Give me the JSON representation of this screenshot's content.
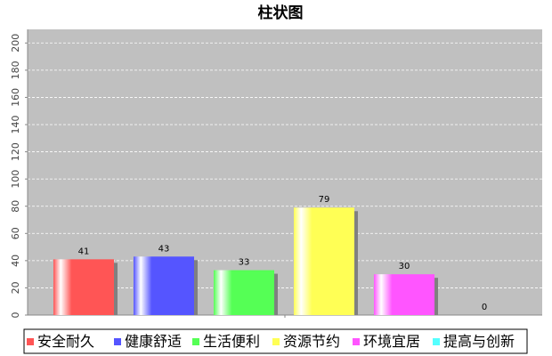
{
  "chart_data": {
    "type": "bar",
    "title": "柱状图",
    "categories": [
      null
    ],
    "series": [
      {
        "name": "安全耐久",
        "color": "#ff5555",
        "values": [
          41
        ]
      },
      {
        "name": "健康舒适",
        "color": "#5555ff",
        "values": [
          43
        ]
      },
      {
        "name": "生活便利",
        "color": "#55ff55",
        "values": [
          33
        ]
      },
      {
        "name": "资源节约",
        "color": "#ffff55",
        "values": [
          79
        ]
      },
      {
        "name": "环境宜居",
        "color": "#ff55ff",
        "values": [
          30
        ]
      },
      {
        "name": "提高与创新",
        "color": "#55ffff",
        "values": [
          0
        ]
      }
    ],
    "ylim": [
      0,
      210
    ],
    "yticks": [
      0,
      20,
      40,
      60,
      80,
      100,
      120,
      140,
      160,
      180,
      200
    ],
    "grid": true
  }
}
